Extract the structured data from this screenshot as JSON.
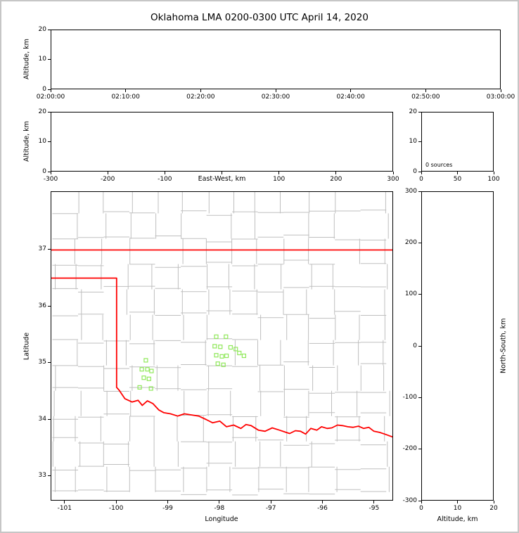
{
  "title": "Oklahoma LMA 0200-0300 UTC April 14, 2020",
  "colors": {
    "figure_border": "#c6c6c6",
    "axis": "#000000",
    "county": "#bfbfbf",
    "state_border": "#ff0000",
    "station": "#90e85a"
  },
  "chart_data": [
    {
      "id": "time_height",
      "type": "scatter",
      "ylabel": "Altitude, km",
      "xlim": [
        0,
        3600
      ],
      "ylim": [
        0,
        20
      ],
      "x_ticks": [
        {
          "v": 0,
          "label": "02:00:00"
        },
        {
          "v": 600,
          "label": "02:10:00"
        },
        {
          "v": 1200,
          "label": "02:20:00"
        },
        {
          "v": 1800,
          "label": "02:30:00"
        },
        {
          "v": 2400,
          "label": "02:40:00"
        },
        {
          "v": 3000,
          "label": "02:50:00"
        },
        {
          "v": 3600,
          "label": "03:00:00"
        }
      ],
      "y_ticks": [
        {
          "v": 0,
          "label": "0"
        },
        {
          "v": 10,
          "label": "10"
        },
        {
          "v": 20,
          "label": "20"
        }
      ],
      "points": []
    },
    {
      "id": "ew_height",
      "type": "scatter",
      "xlabel": "East-West, km",
      "ylabel": "Altitude, km",
      "xlim": [
        -300,
        300
      ],
      "ylim": [
        0,
        20
      ],
      "x_ticks": [
        {
          "v": -300,
          "label": "-300"
        },
        {
          "v": -200,
          "label": "-200"
        },
        {
          "v": -100,
          "label": "-100"
        },
        {
          "v": 0,
          "label": ""
        },
        {
          "v": 100,
          "label": "100"
        },
        {
          "v": 200,
          "label": "200"
        },
        {
          "v": 300,
          "label": "300"
        }
      ],
      "y_ticks": [
        {
          "v": 0,
          "label": "0"
        },
        {
          "v": 10,
          "label": "10"
        },
        {
          "v": 20,
          "label": "20"
        }
      ],
      "points": []
    },
    {
      "id": "alt_histogram",
      "type": "line",
      "annotation": "0 sources",
      "xlim": [
        0,
        100
      ],
      "ylim": [
        0,
        20
      ],
      "x_ticks": [
        {
          "v": 0,
          "label": "0"
        },
        {
          "v": 50,
          "label": "50"
        },
        {
          "v": 100,
          "label": "100"
        }
      ],
      "y_ticks": [
        {
          "v": 0,
          "label": "0"
        },
        {
          "v": 10,
          "label": "10"
        },
        {
          "v": 20,
          "label": "20"
        }
      ],
      "points": []
    },
    {
      "id": "plan_view",
      "type": "scatter",
      "xlabel": "Longitude",
      "ylabel": "Latitude",
      "xlim": [
        -101.27,
        -94.63
      ],
      "ylim": [
        32.56,
        38.03
      ],
      "x_ticks": [
        {
          "v": -101,
          "label": "-101"
        },
        {
          "v": -100,
          "label": "-100"
        },
        {
          "v": -99,
          "label": "-99"
        },
        {
          "v": -98,
          "label": "-98"
        },
        {
          "v": -97,
          "label": "-97"
        },
        {
          "v": -96,
          "label": "-96"
        },
        {
          "v": -95,
          "label": "-95"
        }
      ],
      "y_ticks": [
        {
          "v": 33,
          "label": "33"
        },
        {
          "v": 34,
          "label": "34"
        },
        {
          "v": 35,
          "label": "35"
        },
        {
          "v": 36,
          "label": "36"
        },
        {
          "v": 37,
          "label": "37"
        }
      ],
      "stations_lonlat": [
        [
          -98.06,
          35.46
        ],
        [
          -97.87,
          35.46
        ],
        [
          -98.09,
          35.29
        ],
        [
          -97.98,
          35.28
        ],
        [
          -97.78,
          35.27
        ],
        [
          -97.68,
          35.24
        ],
        [
          -98.06,
          35.13
        ],
        [
          -97.95,
          35.11
        ],
        [
          -97.86,
          35.12
        ],
        [
          -98.03,
          34.98
        ],
        [
          -97.92,
          34.96
        ],
        [
          -97.61,
          35.17
        ],
        [
          -97.52,
          35.12
        ],
        [
          -99.43,
          35.04
        ],
        [
          -99.51,
          34.88
        ],
        [
          -99.4,
          34.88
        ],
        [
          -99.32,
          34.85
        ],
        [
          -99.47,
          34.73
        ],
        [
          -99.37,
          34.71
        ],
        [
          -99.55,
          34.56
        ],
        [
          -99.33,
          34.54
        ]
      ],
      "state_border_paths": [
        [
          [
            -101.27,
            37.0
          ],
          [
            -94.63,
            37.0
          ]
        ],
        [
          [
            -101.27,
            36.5
          ],
          [
            -100.0,
            36.5
          ],
          [
            -100.0,
            34.56
          ],
          [
            -99.95,
            34.51
          ],
          [
            -99.84,
            34.36
          ],
          [
            -99.7,
            34.3
          ],
          [
            -99.58,
            34.33
          ],
          [
            -99.5,
            34.24
          ],
          [
            -99.4,
            34.32
          ],
          [
            -99.29,
            34.27
          ],
          [
            -99.18,
            34.16
          ],
          [
            -99.08,
            34.11
          ],
          [
            -98.95,
            34.09
          ],
          [
            -98.81,
            34.05
          ],
          [
            -98.68,
            34.09
          ],
          [
            -98.54,
            34.07
          ],
          [
            -98.4,
            34.05
          ],
          [
            -98.26,
            33.99
          ],
          [
            -98.13,
            33.93
          ],
          [
            -97.99,
            33.96
          ],
          [
            -97.86,
            33.86
          ],
          [
            -97.72,
            33.89
          ],
          [
            -97.58,
            33.83
          ],
          [
            -97.48,
            33.9
          ],
          [
            -97.38,
            33.88
          ],
          [
            -97.24,
            33.8
          ],
          [
            -97.11,
            33.78
          ],
          [
            -96.97,
            33.84
          ],
          [
            -96.83,
            33.8
          ],
          [
            -96.7,
            33.76
          ],
          [
            -96.63,
            33.74
          ],
          [
            -96.52,
            33.79
          ],
          [
            -96.42,
            33.78
          ],
          [
            -96.32,
            33.73
          ],
          [
            -96.22,
            33.83
          ],
          [
            -96.1,
            33.8
          ],
          [
            -96.01,
            33.86
          ],
          [
            -95.9,
            33.83
          ],
          [
            -95.81,
            33.84
          ],
          [
            -95.7,
            33.89
          ],
          [
            -95.6,
            33.88
          ],
          [
            -95.5,
            33.86
          ],
          [
            -95.4,
            33.85
          ],
          [
            -95.29,
            33.87
          ],
          [
            -95.19,
            33.83
          ],
          [
            -95.09,
            33.85
          ],
          [
            -94.99,
            33.78
          ],
          [
            -94.88,
            33.76
          ],
          [
            -94.78,
            33.73
          ],
          [
            -94.63,
            33.68
          ]
        ]
      ],
      "county_grid": {
        "seed": 20200414,
        "lon_start": -101.25,
        "lon_step": 0.5,
        "lon_count": 14,
        "lat_start": 32.7,
        "lat_step": 0.45,
        "lat_count": 13,
        "jitter_deg": 0.07,
        "skip_prob": 0.1
      }
    },
    {
      "id": "ns_height",
      "type": "scatter",
      "xlabel": "Altitude, km",
      "ylabel": "North-South, km",
      "xlim": [
        0,
        20
      ],
      "ylim": [
        -300,
        300
      ],
      "x_ticks": [
        {
          "v": 0,
          "label": "0"
        },
        {
          "v": 10,
          "label": "10"
        },
        {
          "v": 20,
          "label": "20"
        }
      ],
      "y_ticks": [
        {
          "v": 300,
          "label": "300"
        },
        {
          "v": 200,
          "label": "200"
        },
        {
          "v": 100,
          "label": "100"
        },
        {
          "v": 0,
          "label": "0"
        },
        {
          "v": -100,
          "label": "-100"
        },
        {
          "v": -200,
          "label": "-200"
        },
        {
          "v": -300,
          "label": "-300"
        }
      ],
      "points": []
    }
  ]
}
